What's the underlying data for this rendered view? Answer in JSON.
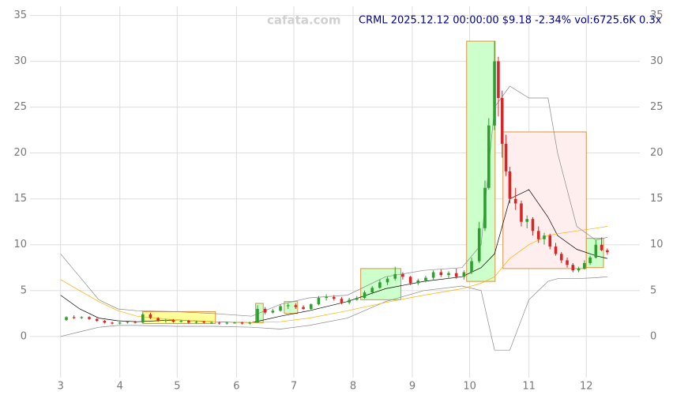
{
  "chart_data": {
    "type": "candlestick",
    "title": "CRML 2025.12.12 00:00:00 $9.18 -2.34% vol:6725.6K 0.3x",
    "watermark": "cafata.com",
    "title_color": "#00008b",
    "xlim": [
      44,
      363
    ],
    "ylim": [
      -4.5,
      36
    ],
    "xticks": [
      {
        "value": 60,
        "label": "3"
      },
      {
        "value": 91,
        "label": "4"
      },
      {
        "value": 121,
        "label": "5"
      },
      {
        "value": 152,
        "label": "6"
      },
      {
        "value": 182,
        "label": "7"
      },
      {
        "value": 213,
        "label": "8"
      },
      {
        "value": 244,
        "label": "9"
      },
      {
        "value": 274,
        "label": "10"
      },
      {
        "value": 305,
        "label": "11"
      },
      {
        "value": 335,
        "label": "12"
      }
    ],
    "yticks": [
      0,
      5,
      10,
      15,
      20,
      25,
      30,
      35
    ],
    "grid": true,
    "up_color": "#2ca02c",
    "down_color": "#d62728",
    "x": [
      63,
      67,
      71,
      75,
      79,
      83,
      87,
      91,
      95,
      99,
      103,
      107,
      111,
      115,
      119,
      123,
      127,
      131,
      135,
      139,
      143,
      147,
      151,
      155,
      159,
      163,
      167,
      171,
      175,
      179,
      183,
      187,
      191,
      195,
      199,
      203,
      207,
      211,
      215,
      219,
      223,
      227,
      231,
      235,
      239,
      243,
      247,
      251,
      255,
      259,
      263,
      267,
      271,
      275,
      279,
      282,
      284,
      287,
      289,
      291,
      293,
      295,
      298,
      301,
      304,
      307,
      310,
      313,
      316,
      319,
      322,
      325,
      328,
      331,
      334,
      337,
      340,
      343,
      346
    ],
    "open": [
      1.8,
      2.1,
      2.0,
      2.1,
      1.9,
      1.7,
      1.5,
      1.4,
      1.5,
      1.6,
      1.5,
      2.4,
      2.0,
      1.7,
      1.8,
      1.6,
      1.7,
      1.5,
      1.6,
      1.5,
      1.5,
      1.4,
      1.5,
      1.5,
      1.4,
      1.5,
      3.0,
      2.6,
      2.8,
      3.3,
      3.4,
      3.2,
      3.0,
      3.5,
      4.2,
      4.3,
      4.1,
      3.7,
      4.0,
      4.2,
      4.8,
      5.3,
      5.9,
      6.3,
      6.8,
      6.5,
      5.8,
      6.1,
      6.4,
      7.0,
      6.7,
      6.9,
      6.5,
      7.0,
      8.2,
      11.8,
      16.2,
      23.0,
      30.0,
      26.0,
      21.0,
      18.0,
      15.0,
      14.5,
      12.5,
      12.8,
      11.5,
      10.6,
      11.0,
      9.8,
      9.0,
      8.3,
      7.8,
      7.2,
      7.4,
      8.0,
      8.6,
      10.0,
      9.4
    ],
    "high": [
      2.2,
      2.3,
      2.2,
      2.2,
      2.0,
      1.8,
      1.6,
      1.6,
      1.7,
      1.7,
      2.6,
      2.6,
      2.1,
      1.9,
      1.9,
      1.8,
      1.8,
      1.7,
      1.7,
      1.6,
      1.6,
      1.6,
      1.6,
      1.6,
      1.6,
      3.4,
      3.2,
      3.0,
      3.5,
      3.6,
      3.6,
      3.4,
      3.6,
      4.4,
      4.6,
      4.5,
      4.3,
      4.2,
      4.4,
      5.0,
      5.5,
      6.2,
      6.5,
      7.6,
      7.0,
      6.6,
      6.3,
      6.6,
      7.2,
      7.3,
      7.1,
      7.4,
      7.2,
      8.6,
      12.5,
      17.0,
      23.8,
      32.2,
      30.5,
      26.8,
      22.0,
      18.5,
      16.2,
      14.8,
      13.2,
      13.0,
      12.0,
      11.3,
      11.2,
      10.2,
      9.2,
      8.6,
      8.0,
      7.6,
      8.3,
      8.8,
      10.5,
      10.8,
      9.6
    ],
    "low": [
      1.7,
      1.9,
      1.9,
      1.8,
      1.6,
      1.4,
      1.3,
      1.3,
      1.4,
      1.4,
      1.5,
      1.9,
      1.6,
      1.5,
      1.5,
      1.5,
      1.4,
      1.4,
      1.4,
      1.4,
      1.3,
      1.3,
      1.4,
      1.3,
      1.3,
      1.5,
      2.4,
      2.5,
      2.7,
      3.0,
      3.0,
      2.9,
      2.9,
      3.4,
      3.9,
      3.9,
      3.5,
      3.5,
      3.9,
      4.1,
      4.6,
      5.2,
      5.6,
      6.1,
      6.2,
      5.6,
      5.6,
      5.9,
      6.2,
      6.5,
      6.3,
      6.3,
      6.2,
      6.8,
      8.0,
      11.5,
      16.0,
      22.5,
      24.0,
      19.5,
      17.5,
      14.5,
      13.8,
      12.0,
      11.8,
      11.0,
      10.2,
      10.0,
      9.5,
      8.8,
      8.0,
      7.5,
      7.0,
      7.0,
      7.3,
      7.8,
      8.5,
      9.3,
      8.9
    ],
    "close": [
      2.1,
      2.0,
      2.1,
      1.9,
      1.7,
      1.5,
      1.4,
      1.5,
      1.6,
      1.5,
      2.4,
      2.0,
      1.7,
      1.8,
      1.6,
      1.7,
      1.5,
      1.6,
      1.5,
      1.5,
      1.4,
      1.5,
      1.5,
      1.4,
      1.5,
      3.0,
      2.6,
      2.8,
      3.3,
      3.4,
      3.2,
      3.0,
      3.5,
      4.2,
      4.3,
      4.1,
      3.7,
      4.0,
      4.2,
      4.8,
      5.3,
      5.9,
      6.3,
      6.8,
      6.5,
      5.8,
      6.1,
      6.4,
      7.0,
      6.7,
      6.9,
      6.5,
      7.0,
      8.2,
      11.8,
      16.2,
      23.0,
      30.0,
      26.0,
      21.0,
      18.0,
      15.0,
      14.5,
      12.5,
      12.8,
      11.5,
      10.6,
      11.0,
      9.8,
      9.0,
      8.3,
      7.8,
      7.2,
      7.4,
      8.0,
      8.6,
      10.0,
      9.4,
      9.18
    ],
    "zones": [
      {
        "x0": 103,
        "x1": 141,
        "y0": 1.4,
        "y1": 2.7,
        "color": "#ffff99"
      },
      {
        "x0": 162,
        "x1": 166,
        "y0": 1.5,
        "y1": 3.6,
        "color": "#ccffcc"
      },
      {
        "x0": 177,
        "x1": 184,
        "y0": 2.5,
        "y1": 3.8,
        "color": "#ccffcc"
      },
      {
        "x0": 217,
        "x1": 238,
        "y0": 4.0,
        "y1": 7.4,
        "color": "#ccffcc"
      },
      {
        "x0": 272.4,
        "x1": 287.3,
        "y0": 6.0,
        "y1": 32.2,
        "color": "#ccffcc"
      },
      {
        "x0": 291.4,
        "x1": 335,
        "y0": 7.4,
        "y1": 22.3,
        "color": "#ffeeee"
      },
      {
        "x0": 335,
        "x1": 344,
        "y0": 7.5,
        "y1": 10.7,
        "color": "#ccffcc"
      }
    ],
    "lines": [
      {
        "color": "#888888",
        "x": [
          60,
          70,
          80,
          90,
          100,
          120,
          140,
          160,
          175,
          190,
          210,
          230,
          250,
          270,
          280,
          287,
          295,
          305,
          315,
          320,
          330,
          340,
          346
        ],
        "values": [
          9,
          6.5,
          4,
          3,
          2.8,
          2.7,
          2.5,
          2.2,
          3.5,
          4.2,
          4.5,
          6.5,
          7.2,
          7.5,
          10,
          25,
          27.3,
          26,
          26,
          20,
          12,
          10.5,
          10.8
        ]
      },
      {
        "color": "#888888",
        "x": [
          60,
          70,
          80,
          90,
          100,
          120,
          140,
          160,
          175,
          190,
          210,
          230,
          250,
          270,
          280,
          287,
          295,
          305,
          315,
          320,
          330,
          340,
          346
        ],
        "values": [
          0,
          0.5,
          1,
          1.2,
          1.2,
          1.1,
          1.1,
          1.0,
          0.8,
          1.2,
          2,
          3.8,
          5,
          5.5,
          5,
          -1.5,
          -1.5,
          4,
          6,
          6.3,
          6.3,
          6.4,
          6.5
        ]
      },
      {
        "color": "#000000",
        "x": [
          60,
          70,
          80,
          90,
          100,
          120,
          140,
          160,
          175,
          190,
          210,
          230,
          250,
          270,
          280,
          287,
          295,
          305,
          315,
          320,
          330,
          340,
          346
        ],
        "values": [
          4.5,
          3,
          2,
          1.7,
          1.6,
          1.8,
          1.6,
          1.5,
          2.2,
          2.8,
          3.8,
          5.2,
          6.0,
          6.5,
          7.5,
          9,
          15,
          16,
          13,
          11,
          9.5,
          8.8,
          8.5
        ]
      },
      {
        "color": "#ffb000",
        "x": [
          60,
          70,
          80,
          90,
          100,
          120,
          140,
          160,
          175,
          190,
          210,
          230,
          250,
          270,
          280,
          287,
          295,
          305,
          315,
          320,
          330,
          340,
          346
        ],
        "values": [
          6.2,
          5,
          3.8,
          2.8,
          2.2,
          1.8,
          1.6,
          1.5,
          1.6,
          2,
          2.8,
          3.7,
          4.5,
          5.2,
          5.8,
          6.5,
          8.5,
          10,
          11,
          11.2,
          11.5,
          11.8,
          12
        ]
      }
    ]
  }
}
